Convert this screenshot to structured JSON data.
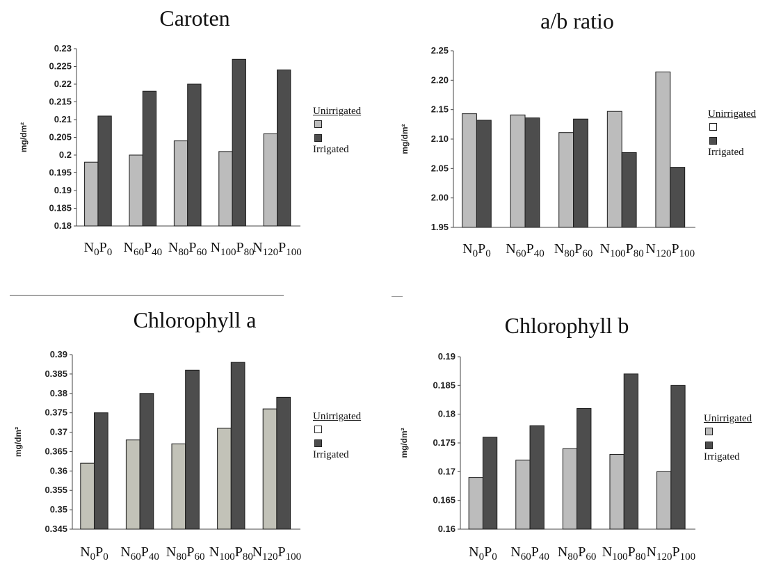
{
  "chart_data": [
    {
      "type": "bar",
      "title": "Caroten",
      "ylabel": "mg/dm²",
      "categories": [
        "N0P0",
        "N60P40",
        "N80P60",
        "N100P80",
        "N120P100"
      ],
      "category_parts": [
        [
          "N",
          "0",
          "P",
          "0"
        ],
        [
          "N",
          "60",
          "P",
          "40"
        ],
        [
          "N",
          "80",
          "P",
          "60"
        ],
        [
          "N",
          "100",
          "P",
          "80"
        ],
        [
          "N",
          "120",
          "P",
          "100"
        ]
      ],
      "ylim": [
        0.18,
        0.23
      ],
      "yticks": [
        "0.18",
        "0.185",
        "0.19",
        "0.195",
        "0.2",
        "0.205",
        "0.21",
        "0.215",
        "0.22",
        "0.225",
        "0.23"
      ],
      "series": [
        {
          "name": "Unirrigated",
          "values": [
            0.198,
            0.2,
            0.204,
            0.201,
            0.206
          ]
        },
        {
          "name": "Irrigated",
          "values": [
            0.211,
            0.218,
            0.22,
            0.227,
            0.224
          ]
        }
      ],
      "legend": {
        "header": "Unirrigated",
        "label": "Irrigated",
        "position": "right"
      },
      "colors": [
        "#bcbcbc",
        "#4d4d4d"
      ]
    },
    {
      "type": "bar",
      "title": "a/b ratio",
      "ylabel": "mg/dm²",
      "categories": [
        "N0P0",
        "N60P40",
        "N80P60",
        "N100P80",
        "N120P100"
      ],
      "category_parts": [
        [
          "N",
          "0",
          "P",
          "0"
        ],
        [
          "N",
          "60",
          "P",
          "40"
        ],
        [
          "N",
          "80",
          "P",
          "60"
        ],
        [
          "N",
          "100",
          "P",
          "80"
        ],
        [
          "N",
          "120",
          "P",
          "100"
        ]
      ],
      "ylim": [
        1.95,
        2.25
      ],
      "yticks": [
        "1.95",
        "2.00",
        "2.05",
        "2.10",
        "2.15",
        "2.20",
        "2.25"
      ],
      "series": [
        {
          "name": "Unirrigated",
          "values": [
            2.143,
            2.141,
            2.111,
            2.147,
            2.214
          ]
        },
        {
          "name": "Irrigated",
          "values": [
            2.132,
            2.136,
            2.134,
            2.077,
            2.052
          ]
        }
      ],
      "legend": {
        "header": "Unirrigated",
        "label": "Irrigated",
        "position": "right"
      },
      "colors": [
        "#bcbcbc",
        "#4d4d4d"
      ]
    },
    {
      "type": "bar",
      "title": "Chlorophyll a",
      "ylabel": "mg/dm²",
      "categories": [
        "N0P0",
        "N60P40",
        "N80P60",
        "N100P80",
        "N120P100"
      ],
      "category_parts": [
        [
          "N",
          "0",
          "P",
          "0"
        ],
        [
          "N",
          "60",
          "P",
          "40"
        ],
        [
          "N",
          "80",
          "P",
          "60"
        ],
        [
          "N",
          "100",
          "P",
          "80"
        ],
        [
          "N",
          "120",
          "P",
          "100"
        ]
      ],
      "ylim": [
        0.345,
        0.39
      ],
      "yticks": [
        "0.345",
        "0.35",
        "0.355",
        "0.36",
        "0.365",
        "0.37",
        "0.375",
        "0.38",
        "0.385",
        "0.39"
      ],
      "series": [
        {
          "name": "Unirrigated",
          "values": [
            0.362,
            0.368,
            0.367,
            0.371,
            0.376
          ]
        },
        {
          "name": "Irrigated",
          "values": [
            0.375,
            0.38,
            0.386,
            0.388,
            0.379
          ]
        }
      ],
      "legend": {
        "header": "Unirrigated",
        "label": "Irrigated",
        "position": "right"
      },
      "colors": [
        "#c2c2b8",
        "#4d4d4d"
      ]
    },
    {
      "type": "bar",
      "title": "Chlorophyll b",
      "ylabel": "mg/dm²",
      "categories": [
        "N0P0",
        "N60P40",
        "N80P60",
        "N100P80",
        "N120P100"
      ],
      "category_parts": [
        [
          "N",
          "0",
          "P",
          "0"
        ],
        [
          "N",
          "60",
          "P",
          "40"
        ],
        [
          "N",
          "80",
          "P",
          "60"
        ],
        [
          "N",
          "100",
          "P",
          "80"
        ],
        [
          "N",
          "120",
          "P",
          "100"
        ]
      ],
      "ylim": [
        0.16,
        0.19
      ],
      "yticks": [
        "0.16",
        "0.165",
        "0.17",
        "0.175",
        "0.18",
        "0.185",
        "0.19"
      ],
      "series": [
        {
          "name": "Unirrigated",
          "values": [
            0.169,
            0.172,
            0.174,
            0.173,
            0.17
          ]
        },
        {
          "name": "Irrigated",
          "values": [
            0.176,
            0.178,
            0.181,
            0.187,
            0.185
          ]
        }
      ],
      "legend": {
        "header": "Unirrigated",
        "label": "Irrigated",
        "position": "right"
      },
      "colors": [
        "#bcbcbc",
        "#4d4d4d"
      ]
    }
  ]
}
